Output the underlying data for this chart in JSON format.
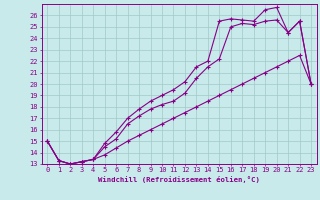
{
  "xlabel": "Windchill (Refroidissement éolien,°C)",
  "bg_color": "#c8eaea",
  "grid_color": "#a0c8c8",
  "line_color": "#880088",
  "xlim": [
    -0.5,
    23.5
  ],
  "ylim": [
    13,
    27
  ],
  "xticks": [
    0,
    1,
    2,
    3,
    4,
    5,
    6,
    7,
    8,
    9,
    10,
    11,
    12,
    13,
    14,
    15,
    16,
    17,
    18,
    19,
    20,
    21,
    22,
    23
  ],
  "yticks": [
    13,
    14,
    15,
    16,
    17,
    18,
    19,
    20,
    21,
    22,
    23,
    24,
    25,
    26
  ],
  "line1_x": [
    0,
    1,
    2,
    3,
    4,
    5,
    6,
    7,
    8,
    9,
    10,
    11,
    12,
    13,
    14,
    15,
    16,
    17,
    18,
    19,
    20,
    21,
    22,
    23
  ],
  "line1_y": [
    15.0,
    13.3,
    13.0,
    13.2,
    13.4,
    13.8,
    14.4,
    15.0,
    15.5,
    16.0,
    16.5,
    17.0,
    17.5,
    18.0,
    18.5,
    19.0,
    19.5,
    20.0,
    20.5,
    21.0,
    21.5,
    22.0,
    22.5,
    20.0
  ],
  "line2_x": [
    0,
    1,
    2,
    3,
    4,
    5,
    6,
    7,
    8,
    9,
    10,
    11,
    12,
    13,
    14,
    15,
    16,
    17,
    18,
    19,
    20,
    21,
    22,
    23
  ],
  "line2_y": [
    15.0,
    13.3,
    13.0,
    13.2,
    13.4,
    14.5,
    15.2,
    16.5,
    17.2,
    17.8,
    18.2,
    18.5,
    19.2,
    20.5,
    21.5,
    22.2,
    25.0,
    25.3,
    25.2,
    25.5,
    25.6,
    24.5,
    25.5,
    20.0
  ],
  "line3_x": [
    0,
    1,
    2,
    3,
    4,
    5,
    6,
    7,
    8,
    9,
    10,
    11,
    12,
    13,
    14,
    15,
    16,
    17,
    18,
    19,
    20,
    21,
    22,
    23
  ],
  "line3_y": [
    15.0,
    13.3,
    13.0,
    13.2,
    13.4,
    14.8,
    15.8,
    17.0,
    17.8,
    18.5,
    19.0,
    19.5,
    20.2,
    21.5,
    22.0,
    25.5,
    25.7,
    25.6,
    25.5,
    26.5,
    26.7,
    24.5,
    25.5,
    20.0
  ]
}
